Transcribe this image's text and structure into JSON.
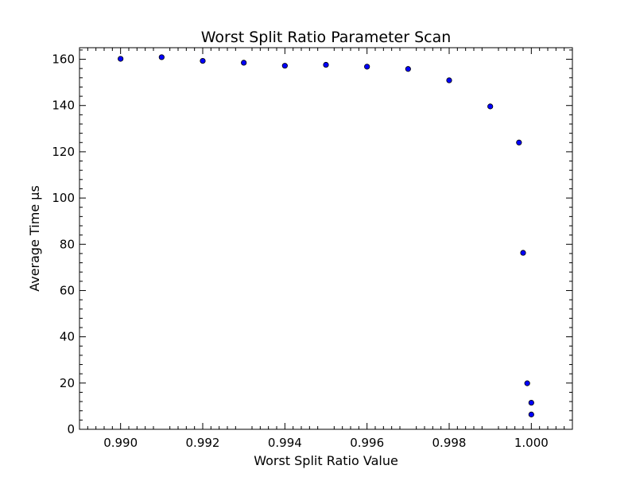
{
  "chart_data": {
    "type": "scatter",
    "title": "Worst Split Ratio Parameter Scan",
    "xlabel": "Worst Split Ratio Value",
    "ylabel": "Average Time μs",
    "xlim": [
      0.989,
      1.001
    ],
    "ylim": [
      0,
      165
    ],
    "x_ticks": [
      "0.990",
      "0.992",
      "0.994",
      "0.996",
      "0.998",
      "1.000"
    ],
    "y_ticks": [
      "0",
      "20",
      "40",
      "60",
      "80",
      "100",
      "120",
      "140",
      "160"
    ],
    "grid": false,
    "marker_color": "#0000ff",
    "marker_edge_color": "#000000",
    "points": [
      {
        "x": 0.99,
        "y": 160.2
      },
      {
        "x": 0.991,
        "y": 160.9
      },
      {
        "x": 0.992,
        "y": 159.3
      },
      {
        "x": 0.993,
        "y": 158.5
      },
      {
        "x": 0.994,
        "y": 157.2
      },
      {
        "x": 0.995,
        "y": 157.6
      },
      {
        "x": 0.996,
        "y": 156.8
      },
      {
        "x": 0.997,
        "y": 155.8
      },
      {
        "x": 0.998,
        "y": 150.9
      },
      {
        "x": 0.999,
        "y": 139.6
      },
      {
        "x": 0.9997,
        "y": 124.0
      },
      {
        "x": 0.9998,
        "y": 76.3
      },
      {
        "x": 0.9999,
        "y": 19.9
      },
      {
        "x": 1.0,
        "y": 11.5
      },
      {
        "x": 1.0,
        "y": 6.4
      }
    ]
  }
}
